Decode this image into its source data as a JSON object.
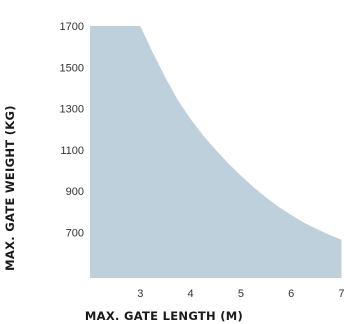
{
  "chart_data": {
    "type": "area",
    "title": "",
    "xlabel": "MAX. GATE LENGTH (M)",
    "ylabel": "MAX. GATE WEIGHT (KG)",
    "x_ticks": [
      "3",
      "4",
      "5",
      "6",
      "7"
    ],
    "y_ticks": [
      "1700",
      "1500",
      "1300",
      "1100",
      "900",
      "700"
    ],
    "xlim": [
      2.0,
      7.05
    ],
    "ylim": [
      480,
      1700
    ],
    "grid": false,
    "fill_color": "#bdd0db",
    "series": [
      {
        "points": [
          [
            2.0,
            1700
          ],
          [
            3.0,
            1700
          ],
          [
            3.25,
            1570
          ],
          [
            3.5,
            1450
          ],
          [
            3.75,
            1340
          ],
          [
            4.0,
            1250
          ],
          [
            4.25,
            1170
          ],
          [
            4.5,
            1100
          ],
          [
            4.75,
            1035
          ],
          [
            5.0,
            975
          ],
          [
            5.25,
            920
          ],
          [
            5.5,
            870
          ],
          [
            5.75,
            825
          ],
          [
            6.0,
            785
          ],
          [
            6.25,
            748
          ],
          [
            6.5,
            718
          ],
          [
            6.75,
            690
          ],
          [
            7.0,
            665
          ]
        ]
      }
    ]
  }
}
